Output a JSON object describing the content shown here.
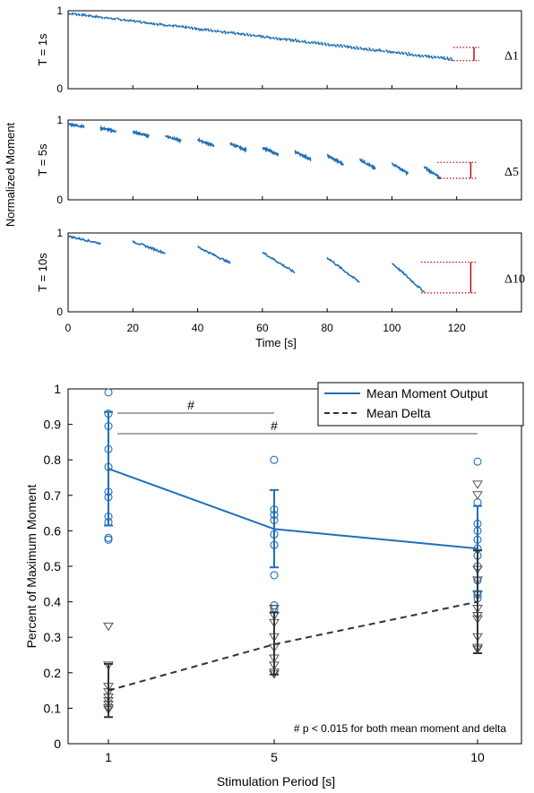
{
  "colors": {
    "moment": "#1f6fb8",
    "delta": "#333333",
    "marker_delta": "#555555",
    "bracket": "#c00000",
    "axis": "#000000",
    "sig_line": "#555555"
  },
  "top": {
    "ylabel": "Normalized Moment",
    "xlabel": "Time [s]",
    "x_ticks": [
      "0",
      "20",
      "40",
      "60",
      "80",
      "100",
      "120"
    ],
    "xlim": [
      0,
      140
    ],
    "ylim": [
      0,
      1
    ],
    "panels": [
      {
        "label": "T = 1s",
        "delta": "Δ1",
        "period_s": 1,
        "n_cycles": 119,
        "start": 0.97,
        "end": 0.36,
        "drop": 0.035,
        "bracket": [
          0.36,
          0.53
        ],
        "y_ticks": [
          "0",
          "1"
        ]
      },
      {
        "label": "T = 5s",
        "delta": "Δ5",
        "period_s": 5,
        "n_cycles": 23,
        "start": 0.95,
        "end": 0.27,
        "drop": 0.14,
        "bracket": [
          0.27,
          0.47
        ],
        "y_ticks": [
          "0",
          "1"
        ]
      },
      {
        "label": "T = 10s",
        "delta": "Δ10",
        "period_s": 10,
        "n_cycles": 11,
        "start": 0.96,
        "end": 0.25,
        "drop": 0.37,
        "bracket": [
          0.24,
          0.63
        ],
        "y_ticks": [
          "0",
          "1"
        ]
      }
    ]
  },
  "chart_data": {
    "type": "line",
    "xlabel": "Stimulation Period [s]",
    "ylabel": "Percent of Maximum Moment",
    "categories": [
      "1",
      "5",
      "10"
    ],
    "ylim": [
      0,
      1
    ],
    "y_ticks": [
      "0",
      "0.1",
      "0.2",
      "0.3",
      "0.4",
      "0.5",
      "0.6",
      "0.7",
      "0.8",
      "0.9",
      "1"
    ],
    "legend_position": "top-right",
    "series": [
      {
        "name": "Mean Moment Output",
        "values": [
          0.775,
          0.605,
          0.55
        ],
        "err_low": [
          0.615,
          0.497,
          0.43
        ],
        "err_high": [
          0.935,
          0.715,
          0.67
        ]
      },
      {
        "name": "Mean Delta",
        "values": [
          0.15,
          0.28,
          0.4
        ],
        "err_low": [
          0.075,
          0.195,
          0.255
        ],
        "err_high": [
          0.225,
          0.37,
          0.545
        ]
      }
    ],
    "points_moment": [
      [
        0.99,
        0.93,
        0.895,
        0.83,
        0.78,
        0.71,
        0.695,
        0.64,
        0.625,
        0.58,
        0.575
      ],
      [
        0.8,
        0.66,
        0.645,
        0.63,
        0.59,
        0.56,
        0.475,
        0.39,
        0.38
      ],
      [
        0.795,
        0.68,
        0.62,
        0.6,
        0.575,
        0.55,
        0.53,
        0.5,
        0.46,
        0.42,
        0.41
      ]
    ],
    "points_delta": [
      [
        0.33,
        0.22,
        0.16,
        0.145,
        0.13,
        0.12,
        0.11,
        0.1,
        0.095
      ],
      [
        0.38,
        0.36,
        0.34,
        0.3,
        0.27,
        0.24,
        0.22,
        0.2,
        0.195
      ],
      [
        0.73,
        0.7,
        0.49,
        0.46,
        0.42,
        0.38,
        0.36,
        0.35,
        0.3,
        0.27,
        0.265
      ]
    ],
    "annotations": {
      "sig_marker": "#",
      "footnote": "# p < 0.015 for both mean moment and delta"
    }
  }
}
